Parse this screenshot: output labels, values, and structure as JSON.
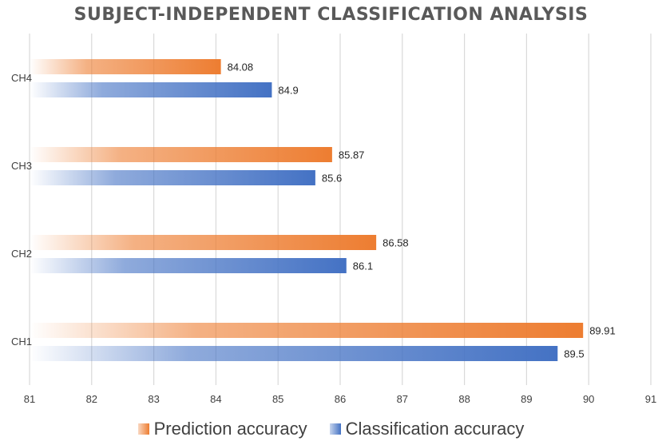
{
  "chart_data": {
    "type": "bar",
    "orientation": "horizontal",
    "title": "SUBJECT-INDEPENDENT CLASSIFICATION ANALYSIS",
    "categories": [
      "CH4",
      "CH3",
      "CH2",
      "CH1"
    ],
    "series": [
      {
        "name": "Prediction accuracy",
        "values": [
          84.08,
          85.87,
          86.58,
          89.91
        ],
        "color": "#ED7D31"
      },
      {
        "name": "Classification accuracy",
        "values": [
          84.9,
          85.6,
          86.1,
          89.5
        ],
        "color": "#4472C4"
      }
    ],
    "xlim": [
      81,
      91
    ],
    "xticks": [
      81,
      82,
      83,
      84,
      85,
      86,
      87,
      88,
      89,
      90,
      91
    ],
    "grid": true,
    "legend_position": "bottom",
    "data_labels": true
  }
}
